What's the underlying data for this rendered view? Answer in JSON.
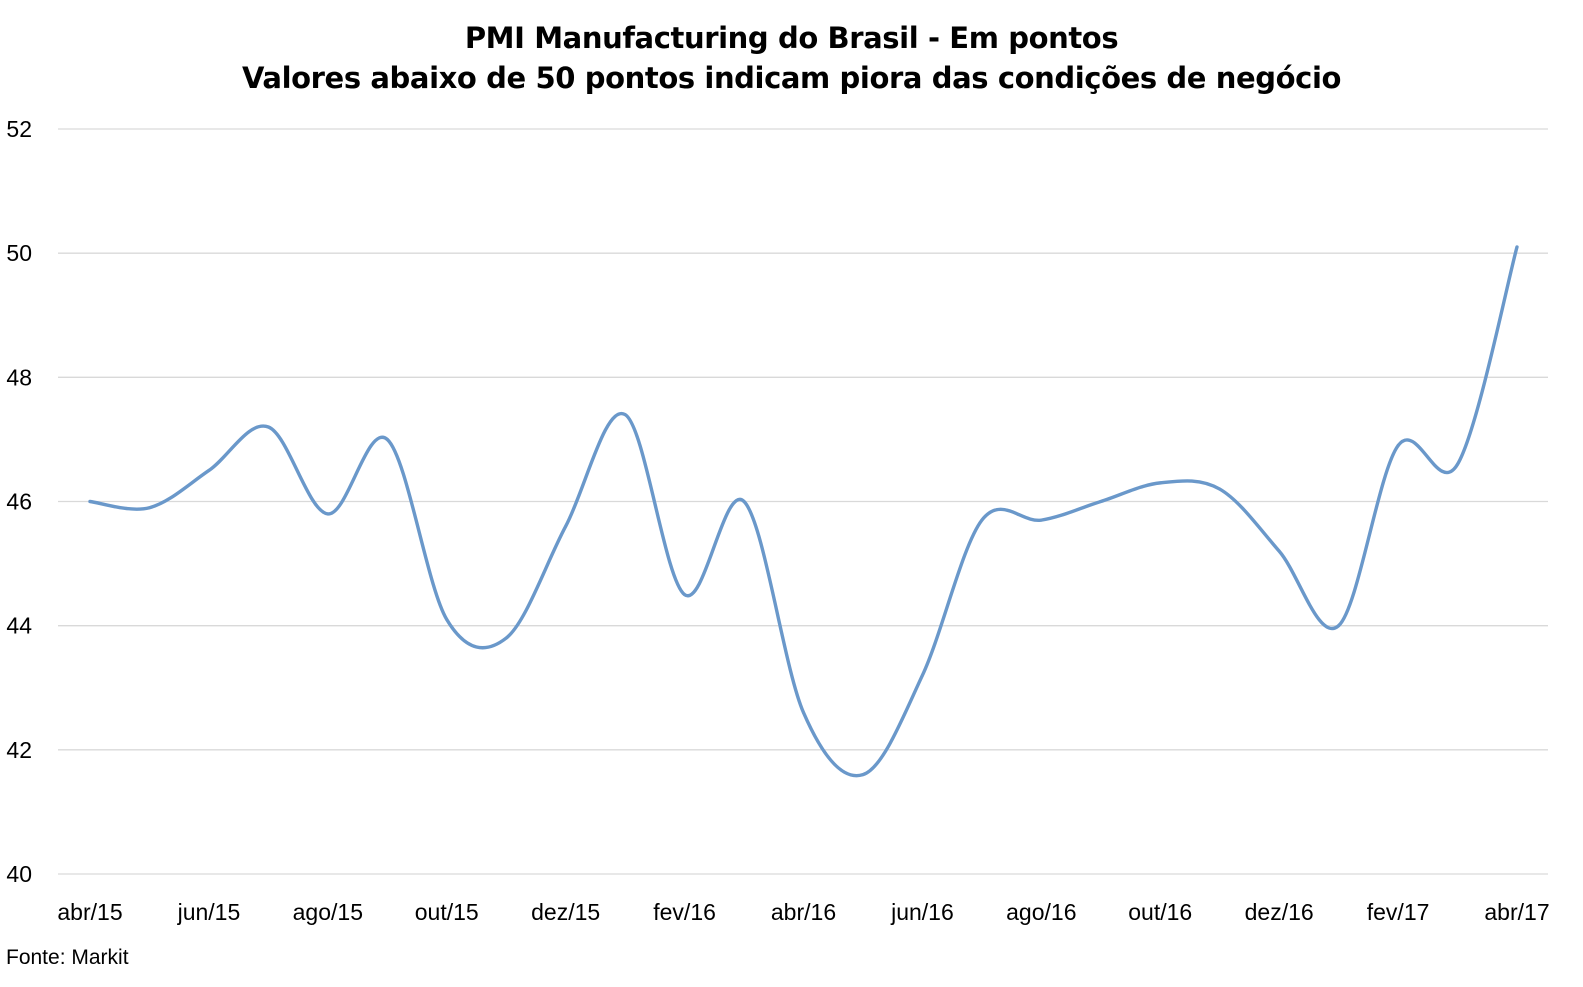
{
  "chart_data": {
    "type": "line",
    "title": "PMI Manufacturing do Brasil - Em pontos",
    "subtitle": "Valores abaixo de 50 pontos indicam piora das condições de negócio",
    "xlabel": "",
    "ylabel": "",
    "ylim": [
      40,
      52
    ],
    "yticks": [
      40,
      42,
      44,
      46,
      48,
      50,
      52
    ],
    "x": [
      "abr/15",
      "mai/15",
      "jun/15",
      "jul/15",
      "ago/15",
      "set/15",
      "out/15",
      "nov/15",
      "dez/15",
      "jan/16",
      "fev/16",
      "mar/16",
      "abr/16",
      "mai/16",
      "jun/16",
      "jul/16",
      "ago/16",
      "set/16",
      "out/16",
      "nov/16",
      "dez/16",
      "jan/17",
      "fev/17",
      "mar/17",
      "abr/17"
    ],
    "xtick_labels": [
      "abr/15",
      "jun/15",
      "ago/15",
      "out/15",
      "dez/15",
      "fev/16",
      "abr/16",
      "jun/16",
      "ago/16",
      "out/16",
      "dez/16",
      "fev/17",
      "abr/17"
    ],
    "series": [
      {
        "values": [
          46.0,
          45.9,
          46.5,
          47.2,
          45.8,
          47.0,
          44.1,
          43.8,
          45.6,
          47.4,
          44.5,
          46.0,
          42.6,
          41.6,
          43.2,
          45.7,
          45.7,
          46.0,
          46.3,
          46.2,
          45.2,
          44.0,
          46.9,
          46.6,
          50.1
        ],
        "color": "#6A98CA"
      }
    ],
    "grid": true,
    "legend": "none",
    "gridline_color": "#D9D9D9"
  },
  "source_text": "Fonte: Markit"
}
